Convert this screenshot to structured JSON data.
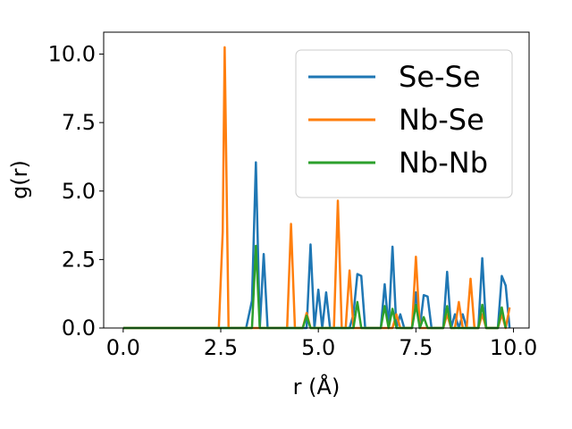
{
  "chart_data": {
    "type": "line",
    "xlabel": "r (Å)",
    "ylabel": "g(r)",
    "xlim": [
      -0.5,
      10.4
    ],
    "ylim": [
      0,
      10.8
    ],
    "xticks": [
      0.0,
      2.5,
      5.0,
      7.5,
      10.0
    ],
    "xtick_labels": [
      "0.0",
      "2.5",
      "5.0",
      "7.5",
      "10.0"
    ],
    "yticks": [
      0.0,
      2.5,
      5.0,
      7.5,
      10.0
    ],
    "ytick_labels": [
      "0.0",
      "2.5",
      "5.0",
      "7.5",
      "10.0"
    ],
    "grid": false,
    "legend_position": "top-right",
    "series": [
      {
        "name": "Se-Se",
        "color": "#1f77b4",
        "x": [
          0.0,
          3.15,
          3.3,
          3.4,
          3.5,
          3.6,
          3.7,
          3.8,
          4.5,
          4.6,
          4.7,
          4.8,
          4.9,
          5.0,
          5.1,
          5.2,
          5.3,
          5.8,
          5.9,
          6.0,
          6.1,
          6.2,
          6.5,
          6.6,
          6.7,
          6.8,
          6.9,
          7.0,
          7.1,
          7.2,
          7.4,
          7.5,
          7.6,
          7.7,
          7.8,
          7.9,
          8.0,
          8.1,
          8.2,
          8.3,
          8.4,
          8.5,
          8.6,
          8.7,
          8.8,
          9.0,
          9.1,
          9.2,
          9.3,
          9.4,
          9.5,
          9.6,
          9.7,
          9.8,
          9.9
        ],
        "y": [
          0.0,
          0.0,
          1.0,
          6.05,
          0.0,
          2.7,
          0.0,
          0.0,
          0.0,
          0.0,
          0.0,
          3.05,
          0.0,
          1.4,
          0.0,
          1.3,
          0.0,
          0.0,
          0.5,
          1.97,
          1.9,
          0.0,
          0.0,
          0.0,
          1.6,
          0.0,
          2.97,
          0.0,
          0.5,
          0.0,
          0.0,
          1.3,
          0.0,
          1.2,
          1.15,
          0.0,
          0.0,
          0.0,
          0.0,
          2.05,
          0.0,
          0.5,
          0.0,
          0.5,
          0.0,
          0.0,
          0.0,
          2.55,
          0.0,
          0.0,
          0.0,
          0.0,
          1.9,
          1.55,
          0.0
        ]
      },
      {
        "name": "Nb-Se",
        "color": "#ff7f0e",
        "x": [
          0.0,
          2.45,
          2.55,
          2.6,
          2.7,
          2.8,
          4.2,
          4.3,
          4.4,
          4.6,
          4.7,
          4.8,
          4.9,
          5.0,
          5.1,
          5.3,
          5.4,
          5.5,
          5.6,
          5.7,
          5.8,
          5.9,
          6.0,
          6.1,
          6.3,
          6.4,
          6.5,
          6.6,
          6.7,
          6.8,
          6.9,
          7.0,
          7.1,
          7.2,
          7.3,
          7.4,
          7.5,
          7.6,
          7.7,
          7.8,
          7.9,
          8.0,
          8.1,
          8.2,
          8.3,
          8.4,
          8.5,
          8.6,
          8.7,
          8.8,
          8.9,
          9.0,
          9.1,
          9.2,
          9.3,
          9.4,
          9.5,
          9.6,
          9.7,
          9.8,
          9.9
        ],
        "y": [
          0.0,
          0.0,
          3.5,
          10.25,
          0.0,
          0.0,
          0.0,
          3.8,
          0.0,
          0.0,
          0.55,
          0.0,
          0.0,
          0.0,
          0.0,
          0.0,
          0.0,
          4.65,
          0.0,
          0.0,
          2.1,
          0.0,
          0.0,
          0.0,
          0.0,
          0.0,
          0.0,
          0.0,
          0.0,
          0.0,
          0.0,
          0.5,
          0.0,
          0.0,
          0.0,
          0.0,
          2.6,
          0.0,
          0.0,
          0.0,
          0.0,
          0.0,
          0.0,
          0.0,
          0.5,
          0.0,
          0.0,
          0.95,
          0.0,
          0.0,
          1.8,
          0.0,
          0.0,
          0.5,
          0.0,
          0.0,
          0.0,
          0.0,
          0.5,
          0.0,
          0.75
        ]
      },
      {
        "name": "Nb-Nb",
        "color": "#2ca02c",
        "x": [
          0.0,
          3.2,
          3.3,
          3.4,
          3.5,
          3.6,
          4.6,
          4.7,
          4.8,
          5.9,
          6.0,
          6.1,
          6.2,
          6.6,
          6.7,
          6.8,
          6.9,
          7.0,
          7.1,
          7.2,
          7.3,
          7.4,
          7.5,
          7.6,
          7.7,
          7.8,
          8.2,
          8.3,
          8.4,
          8.5,
          9.1,
          9.2,
          9.3,
          9.6,
          9.7,
          9.8
        ],
        "y": [
          0.0,
          0.0,
          0.0,
          3.0,
          0.0,
          0.0,
          0.0,
          0.45,
          0.0,
          0.0,
          0.95,
          0.0,
          0.0,
          0.0,
          0.8,
          0.0,
          0.7,
          0.0,
          0.0,
          0.0,
          0.0,
          0.0,
          0.85,
          0.0,
          0.4,
          0.0,
          0.0,
          0.8,
          0.0,
          0.0,
          0.0,
          0.85,
          0.0,
          0.0,
          0.75,
          0.0
        ]
      }
    ]
  }
}
